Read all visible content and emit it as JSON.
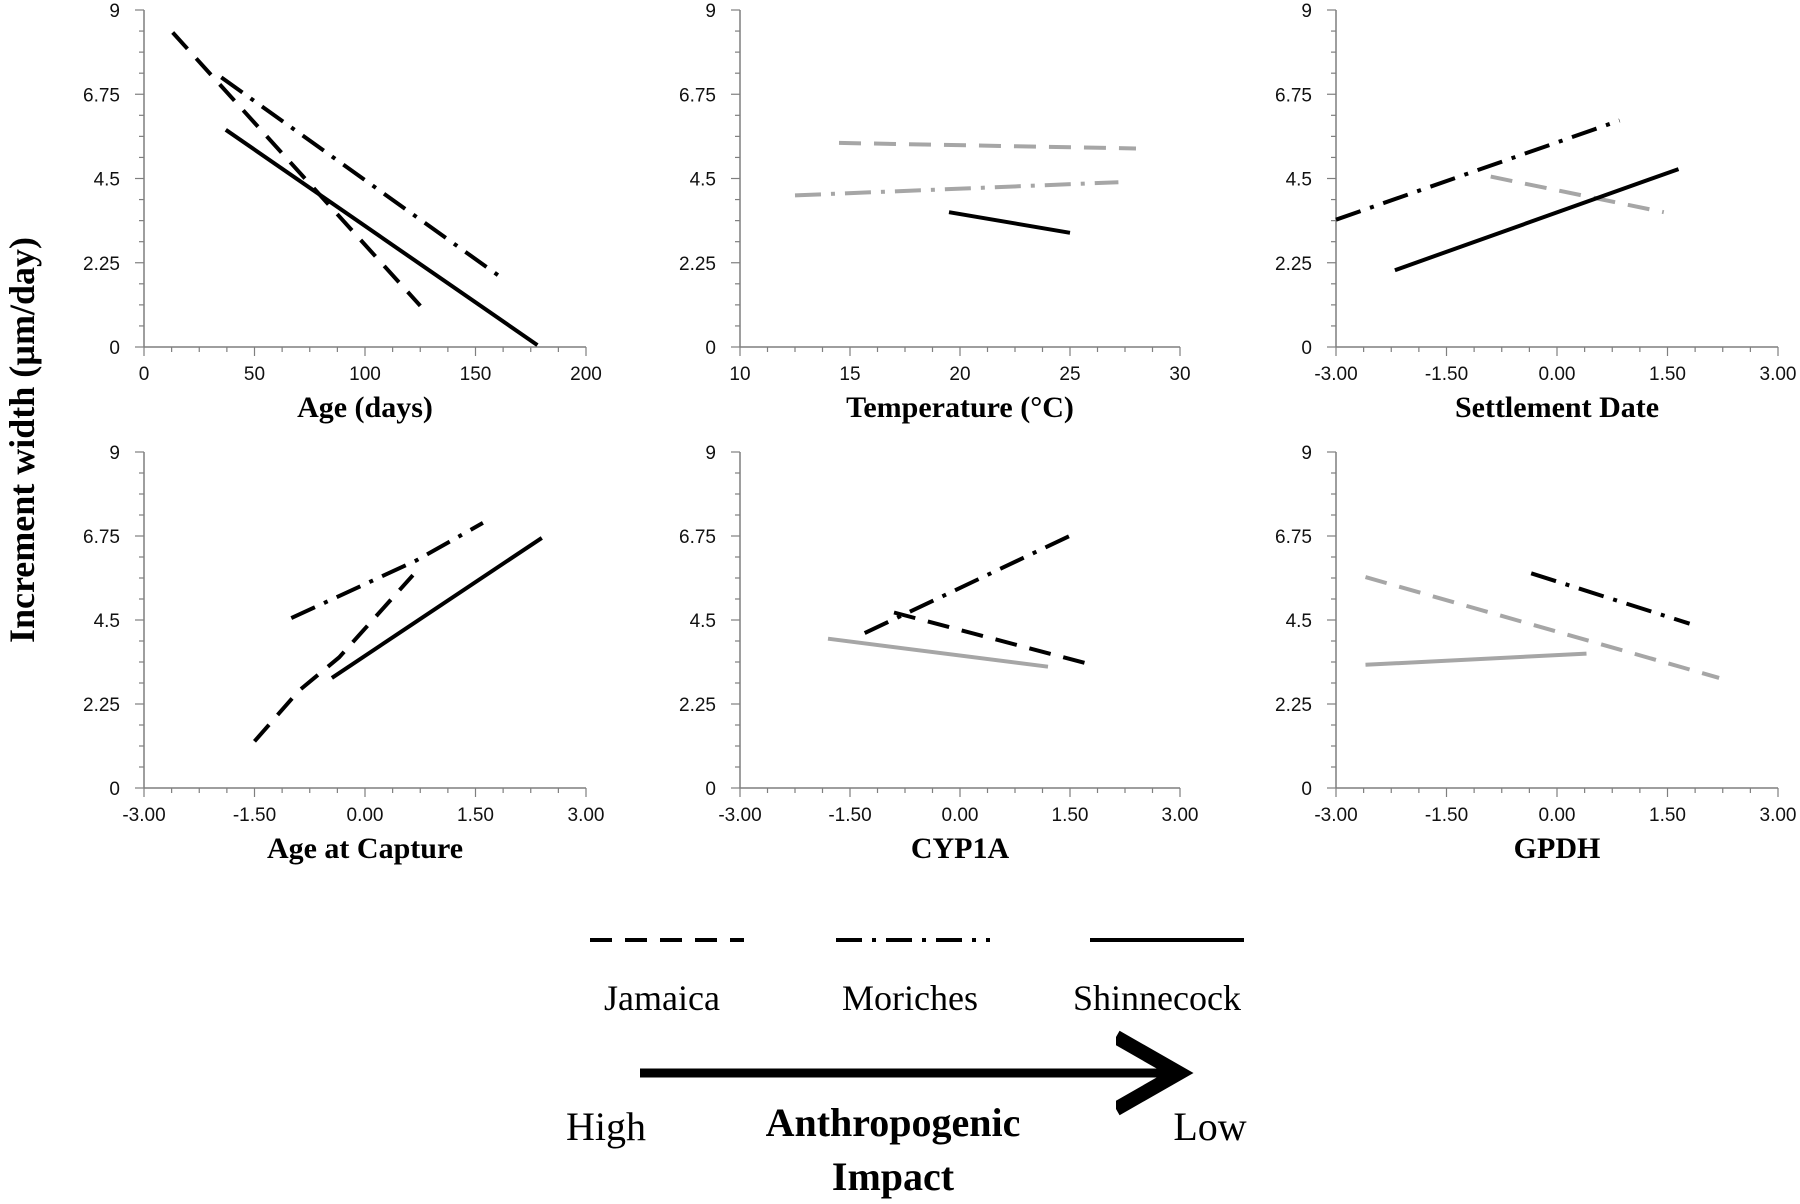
{
  "ylabel": "Increment width (µm/day)",
  "style": {
    "black": "#000000",
    "gray": "#a6a6a6",
    "dash": {
      "Jamaica": "22,13",
      "Moriches": "26,10,4,10",
      "Shinnecock": ""
    }
  },
  "legend": {
    "items": [
      {
        "name": "Jamaica",
        "dash": "dashed"
      },
      {
        "name": "Moriches",
        "dash": "dash-dot"
      },
      {
        "name": "Shinnecock",
        "dash": "solid"
      }
    ],
    "impact_high": "High",
    "impact_title_1": "Anthropogenic",
    "impact_title_2": "Impact",
    "impact_low": "Low"
  },
  "chart_data": [
    {
      "type": "line",
      "xlabel": "Age (days)",
      "ylim": [
        0,
        9
      ],
      "yticks": [
        "0",
        "2.25",
        "4.5",
        "6.75",
        "9"
      ],
      "xlim": [
        0,
        200
      ],
      "xticks": [
        "0",
        "50",
        "100",
        "150",
        "200"
      ],
      "series": [
        {
          "name": "Jamaica",
          "color": "black",
          "points": [
            [
              13,
              8.4
            ],
            [
              125,
              1.1
            ]
          ]
        },
        {
          "name": "Moriches",
          "color": "black",
          "points": [
            [
              35,
              7.2
            ],
            [
              163,
              1.8
            ]
          ]
        },
        {
          "name": "Shinnecock",
          "color": "black",
          "points": [
            [
              37,
              5.8
            ],
            [
              178,
              0.05
            ]
          ]
        }
      ]
    },
    {
      "type": "line",
      "xlabel": "Temperature  (°C)",
      "ylim": [
        0,
        9
      ],
      "yticks": [
        "0",
        "2.25",
        "4.5",
        "6.75",
        "9"
      ],
      "xlim": [
        10,
        30
      ],
      "xticks": [
        "10",
        "15",
        "20",
        "25",
        "30"
      ],
      "series": [
        {
          "name": "Jamaica",
          "color": "gray",
          "points": [
            [
              14.5,
              5.45
            ],
            [
              28,
              5.3
            ]
          ]
        },
        {
          "name": "Moriches",
          "color": "gray",
          "points": [
            [
              12.5,
              4.05
            ],
            [
              27.2,
              4.4
            ]
          ]
        },
        {
          "name": "Shinnecock",
          "color": "black",
          "points": [
            [
              19.5,
              3.6
            ],
            [
              25,
              3.05
            ]
          ]
        }
      ]
    },
    {
      "type": "line",
      "xlabel": "Settlement Date",
      "ylim": [
        0,
        9
      ],
      "yticks": [
        "0",
        "2.25",
        "4.5",
        "6.75",
        "9"
      ],
      "xlim": [
        -3,
        3
      ],
      "xticks": [
        "-3.00",
        "-1.50",
        "0.00",
        "1.50",
        "3.00"
      ],
      "series": [
        {
          "name": "Jamaica",
          "color": "gray",
          "points": [
            [
              -0.9,
              4.55
            ],
            [
              1.45,
              3.6
            ]
          ]
        },
        {
          "name": "Moriches",
          "color": "black",
          "points": [
            [
              -3,
              3.4
            ],
            [
              0.85,
              6.05
            ]
          ]
        },
        {
          "name": "Shinnecock",
          "color": "black",
          "points": [
            [
              -2.2,
              2.05
            ],
            [
              1.65,
              4.75
            ]
          ]
        }
      ]
    },
    {
      "type": "line",
      "xlabel": "Age at Capture",
      "ylim": [
        0,
        9
      ],
      "yticks": [
        "0",
        "2.25",
        "4.5",
        "6.75",
        "9"
      ],
      "xlim": [
        -3,
        3
      ],
      "xticks": [
        "-3.00",
        "-1.50",
        "0.00",
        "1.50",
        "3.00"
      ],
      "series": [
        {
          "name": "Jamaica",
          "color": "black",
          "points": [
            [
              -1.5,
              1.25
            ],
            [
              -0.9,
              2.6
            ],
            [
              -0.35,
              3.5
            ],
            [
              0.65,
              5.7
            ]
          ]
        },
        {
          "name": "Moriches",
          "color": "black",
          "points": [
            [
              -1,
              4.55
            ],
            [
              0.7,
              6.1
            ],
            [
              1.6,
              7.1
            ]
          ]
        },
        {
          "name": "Shinnecock",
          "color": "black",
          "points": [
            [
              -0.45,
              2.95
            ],
            [
              2.4,
              6.7
            ]
          ]
        }
      ]
    },
    {
      "type": "line",
      "xlabel": "CYP1A",
      "ylim": [
        0,
        9
      ],
      "yticks": [
        "0",
        "2.25",
        "4.5",
        "6.75",
        "9"
      ],
      "xlim": [
        -3,
        3
      ],
      "xticks": [
        "-3.00",
        "-1.50",
        "0.00",
        "1.50",
        "3.00"
      ],
      "series": [
        {
          "name": "Jamaica",
          "color": "black",
          "points": [
            [
              -0.9,
              4.7
            ],
            [
              1.7,
              3.35
            ]
          ]
        },
        {
          "name": "Moriches",
          "color": "black",
          "points": [
            [
              -1.3,
              4.15
            ],
            [
              1.6,
              6.85
            ]
          ]
        },
        {
          "name": "Shinnecock",
          "color": "gray",
          "points": [
            [
              -1.8,
              4.0
            ],
            [
              1.2,
              3.25
            ]
          ]
        }
      ]
    },
    {
      "type": "line",
      "xlabel": "GPDH",
      "ylim": [
        0,
        9
      ],
      "yticks": [
        "0",
        "2.25",
        "4.5",
        "6.75",
        "9"
      ],
      "xlim": [
        -3,
        3
      ],
      "xticks": [
        "-3.00",
        "-1.50",
        "0.00",
        "1.50",
        "3.00"
      ],
      "series": [
        {
          "name": "Jamaica",
          "color": "gray",
          "points": [
            [
              -2.6,
              5.65
            ],
            [
              2.2,
              2.95
            ]
          ]
        },
        {
          "name": "Moriches",
          "color": "black",
          "points": [
            [
              -0.35,
              5.75
            ],
            [
              1.8,
              4.4
            ]
          ]
        },
        {
          "name": "Shinnecock",
          "color": "gray",
          "points": [
            [
              -2.6,
              3.3
            ],
            [
              0.4,
              3.6
            ]
          ]
        }
      ]
    }
  ]
}
